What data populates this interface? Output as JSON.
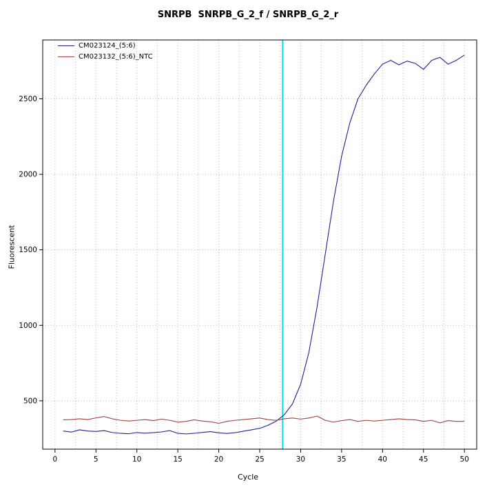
{
  "title": "SNRPB  SNRPB_G_2_f / SNRPB_G_2_r",
  "xlabel": "Cycle",
  "ylabel": "Fluorescent",
  "legend": {
    "items": [
      {
        "label": "CM023124_(5:6)",
        "color": "#202090"
      },
      {
        "label": "CM023132_(5:6)_NTC",
        "color": "#a04040"
      }
    ]
  },
  "colors": {
    "series1": "#202090",
    "series2": "#a04040",
    "threshold": "#00e5ee",
    "grid": "#b8b8b8",
    "axis": "#000000"
  },
  "chart_data": {
    "type": "line",
    "title": "SNRPB  SNRPB_G_2_f / SNRPB_G_2_r",
    "xlabel": "Cycle",
    "ylabel": "Fluorescent",
    "x": [
      1,
      2,
      3,
      4,
      5,
      6,
      7,
      8,
      9,
      10,
      11,
      12,
      13,
      14,
      15,
      16,
      17,
      18,
      19,
      20,
      21,
      22,
      23,
      24,
      25,
      26,
      27,
      28,
      29,
      30,
      31,
      32,
      33,
      34,
      35,
      36,
      37,
      38,
      39,
      40,
      41,
      42,
      43,
      44,
      45,
      46,
      47,
      48,
      49,
      50
    ],
    "series": [
      {
        "name": "CM023124_(5:6)",
        "color": "#202090",
        "values": [
          300,
          293,
          308,
          300,
          297,
          303,
          290,
          285,
          282,
          290,
          286,
          289,
          294,
          303,
          285,
          281,
          285,
          291,
          296,
          288,
          284,
          289,
          299,
          308,
          318,
          338,
          365,
          408,
          480,
          610,
          820,
          1120,
          1470,
          1820,
          2120,
          2340,
          2500,
          2590,
          2665,
          2730,
          2755,
          2725,
          2750,
          2735,
          2695,
          2755,
          2775,
          2730,
          2755,
          2790
        ]
      },
      {
        "name": "CM023132_(5:6)_NTC",
        "color": "#a04040",
        "values": [
          374,
          376,
          381,
          376,
          387,
          396,
          381,
          371,
          366,
          371,
          376,
          369,
          379,
          371,
          359,
          364,
          374,
          366,
          361,
          351,
          364,
          371,
          376,
          381,
          386,
          376,
          371,
          381,
          386,
          379,
          386,
          399,
          371,
          359,
          369,
          376,
          364,
          371,
          366,
          371,
          376,
          381,
          376,
          374,
          364,
          371,
          354,
          369,
          364,
          364
        ]
      }
    ],
    "threshold_line": {
      "x": 27.8,
      "color": "#00e5ee"
    },
    "xticks": [
      0,
      5,
      10,
      15,
      20,
      25,
      30,
      35,
      40,
      45,
      50
    ],
    "yticks": [
      500,
      1000,
      1500,
      2000,
      2500
    ],
    "xlim": [
      -1.5,
      51.5
    ],
    "ylim": [
      180,
      2890
    ],
    "grid": {
      "x_step": 2.5,
      "y_on_ticks": true,
      "style": "dotted"
    },
    "legend_position": "top-left"
  }
}
